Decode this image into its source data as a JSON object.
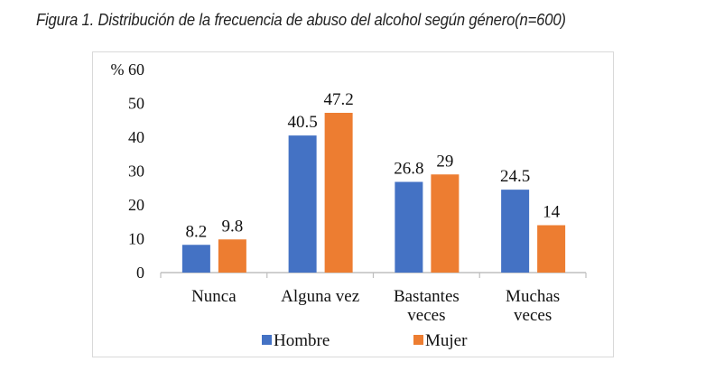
{
  "title": "Figura 1. Distribución de la frecuencia de abuso del alcohol según género(n=600)",
  "chart_data": {
    "type": "bar",
    "title": "Figura 1. Distribución de la frecuencia de abuso del alcohol según género(n=600)",
    "ylabel": "%",
    "xlabel": "",
    "ylim": [
      0,
      60
    ],
    "yticks": [
      0,
      10,
      20,
      30,
      40,
      50,
      60
    ],
    "categories": [
      [
        "Nunca"
      ],
      [
        "Alguna vez"
      ],
      [
        "Bastantes",
        "veces"
      ],
      [
        "Muchas",
        "veces"
      ]
    ],
    "series": [
      {
        "name": "Hombre",
        "color": "#4472C4",
        "values": [
          8.2,
          40.5,
          26.8,
          24.5
        ]
      },
      {
        "name": "Mujer",
        "color": "#ED7D31",
        "values": [
          9.8,
          47.2,
          29,
          14
        ]
      }
    ],
    "data_labels": true,
    "grid": false,
    "legend": "bottom"
  }
}
